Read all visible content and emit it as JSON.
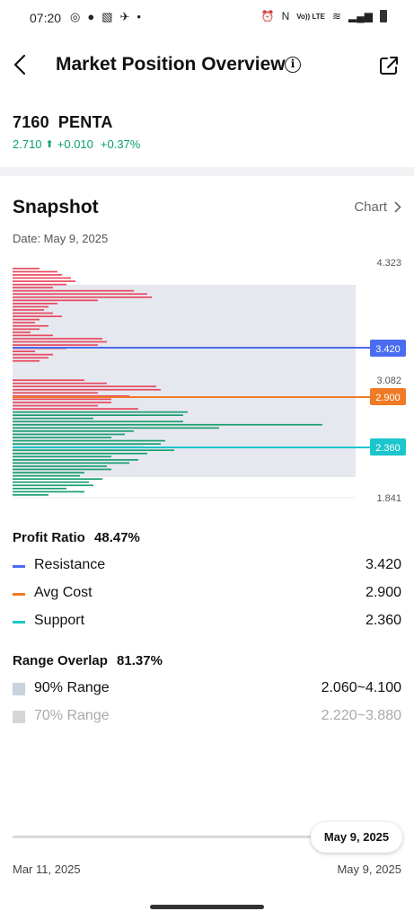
{
  "status": {
    "time": "07:20",
    "left_icons": [
      "whatsapp-icon",
      "compass-icon",
      "gallery-icon",
      "bird-icon",
      "dot-icon"
    ],
    "right_icons": [
      "alarm-icon",
      "nfc-icon",
      "volte-icon",
      "wifi-icon",
      "signal-icon",
      "battery-icon"
    ],
    "volte_text": "Vo)) LTE"
  },
  "header": {
    "title": "Market Position Overview",
    "info_glyph": "i"
  },
  "stock": {
    "code": "7160",
    "name": "PENTA",
    "price": "2.710",
    "arrow": "⬆",
    "change": "+0.010",
    "change_pct": "+0.37%",
    "color": "#0aa06e"
  },
  "snapshot": {
    "title": "Snapshot",
    "chart_link": "Chart",
    "date": "Date: May 9, 2025"
  },
  "chart": {
    "top_value": "4.323",
    "mid_value": "3.082",
    "bottom_value": "1.841",
    "resistance_tag": "3.420",
    "avg_tag": "2.900",
    "support_tag": "2.360",
    "colors": {
      "resistance": "#4a6cf0",
      "avg": "#f07a25",
      "support": "#1cc6cc",
      "profit": "#1a9e70",
      "loss": "#e8495f",
      "band90": "#e6e8ef"
    }
  },
  "profit": {
    "label": "Profit Ratio",
    "value": "48.47%",
    "items": [
      {
        "label": "Resistance",
        "value": "3.420"
      },
      {
        "label": "Avg Cost",
        "value": "2.900"
      },
      {
        "label": "Support",
        "value": "2.360"
      }
    ]
  },
  "range": {
    "label": "Range Overlap",
    "value": "81.37%",
    "items": [
      {
        "label": "90% Range",
        "value": "2.060~4.100"
      },
      {
        "label": "70% Range",
        "value": "2.220~3.880"
      }
    ]
  },
  "timeline": {
    "selected": "May 9, 2025",
    "start": "Mar 11, 2025",
    "end": "May 9, 2025"
  }
}
